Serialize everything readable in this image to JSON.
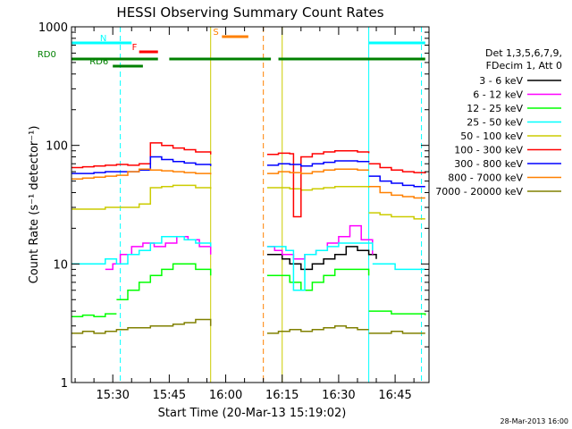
{
  "chart_data": {
    "type": "line",
    "title": "HESSI Observing Summary Count Rates",
    "xlabel": "Start Time (20-Mar-13 15:19:02)",
    "ylabel": "Count Rate (s⁻¹ detector⁻¹)",
    "y_scale": "log",
    "ylim": [
      1,
      1000
    ],
    "xlim": [
      "15:19:02",
      "16:54:00"
    ],
    "x_ticks": [
      "15:30",
      "15:45",
      "16:00",
      "16:15",
      "16:30",
      "16:45"
    ],
    "y_ticks": [
      "1",
      "10",
      "100",
      "1000"
    ],
    "footer_date": "28-Mar-2013 16:00",
    "legend_header": [
      "Det 1,3,5,6,7,9,",
      "FDecim 1, Att 0"
    ],
    "series": [
      {
        "name": "3 - 6 keV",
        "color": "#000000",
        "segments": [
          {
            "x": [
              "16:11",
              "16:13",
              "16:15",
              "16:17",
              "16:20",
              "16:23",
              "16:26",
              "16:29",
              "16:32",
              "16:35",
              "16:38",
              "16:40"
            ],
            "y": [
              12,
              12,
              11,
              10,
              9,
              10,
              11,
              12,
              14,
              13,
              12,
              11
            ]
          }
        ]
      },
      {
        "name": "6 - 12 keV",
        "color": "#ff00ff",
        "segments": [
          {
            "x": [
              "15:28",
              "15:30",
              "15:32",
              "15:35",
              "15:38",
              "15:41",
              "15:44",
              "15:47",
              "15:50",
              "15:53",
              "15:56"
            ],
            "y": [
              9,
              10,
              12,
              14,
              15,
              14,
              15,
              17,
              16,
              14,
              12
            ]
          },
          {
            "x": [
              "16:11",
              "16:13",
              "16:15",
              "16:18",
              "16:21",
              "16:24",
              "16:27",
              "16:30",
              "16:33",
              "16:36",
              "16:39"
            ],
            "y": [
              14,
              13,
              12,
              11,
              12,
              13,
              15,
              17,
              21,
              16,
              12
            ]
          }
        ]
      },
      {
        "name": "12 - 25 keV",
        "color": "#00ff00",
        "segments": [
          {
            "x": [
              "15:19",
              "15:22",
              "15:25",
              "15:28",
              "15:31"
            ],
            "y": [
              3.6,
              3.7,
              3.6,
              3.8,
              3.8
            ]
          },
          {
            "x": [
              "15:31",
              "15:34",
              "15:37",
              "15:40",
              "15:43",
              "15:46",
              "15:49",
              "15:52",
              "15:56"
            ],
            "y": [
              5,
              6,
              7,
              8,
              9,
              10,
              10,
              9,
              8
            ]
          },
          {
            "x": [
              "16:11",
              "16:14",
              "16:17",
              "16:20",
              "16:23",
              "16:26",
              "16:29",
              "16:32",
              "16:35",
              "16:38"
            ],
            "y": [
              8,
              8,
              7,
              6,
              7,
              8,
              9,
              9,
              9,
              8
            ]
          },
          {
            "x": [
              "16:38",
              "16:41",
              "16:44",
              "16:47",
              "16:50",
              "16:53"
            ],
            "y": [
              4,
              4,
              3.8,
              3.8,
              3.8,
              3.7
            ]
          }
        ]
      },
      {
        "name": "25 - 50 keV",
        "color": "#00ffff",
        "segments": [
          {
            "x": [
              "15:19",
              "15:22",
              "15:25",
              "15:28",
              "15:31",
              "15:34",
              "15:37",
              "15:40",
              "15:43",
              "15:46",
              "15:49",
              "15:52",
              "15:56"
            ],
            "y": [
              10,
              10,
              10,
              11,
              10,
              12,
              13,
              15,
              17,
              17,
              16,
              15,
              14
            ]
          },
          {
            "x": [
              "16:11",
              "16:14",
              "16:16",
              "16:18",
              "16:21",
              "16:24",
              "16:27",
              "16:30",
              "16:33",
              "16:36",
              "16:39"
            ],
            "y": [
              14,
              14,
              13,
              6,
              12,
              13,
              14,
              15,
              15,
              15,
              13
            ]
          },
          {
            "x": [
              "16:39",
              "16:42",
              "16:45",
              "16:48",
              "16:51",
              "16:53"
            ],
            "y": [
              10,
              10,
              9,
              9,
              9,
              9
            ]
          }
        ]
      },
      {
        "name": "50 - 100 keV",
        "color": "#cccc00",
        "segments": [
          {
            "x": [
              "15:19",
              "15:22",
              "15:25",
              "15:28",
              "15:31",
              "15:34",
              "15:37",
              "15:40",
              "15:43",
              "15:46",
              "15:49",
              "15:52",
              "15:56"
            ],
            "y": [
              29,
              29,
              29,
              30,
              30,
              30,
              32,
              44,
              45,
              46,
              46,
              44,
              43
            ]
          },
          {
            "x": [
              "16:11",
              "16:14",
              "16:17",
              "16:20",
              "16:23",
              "16:26",
              "16:29",
              "16:32",
              "16:35",
              "16:38"
            ],
            "y": [
              44,
              44,
              43,
              42,
              43,
              44,
              45,
              45,
              45,
              44
            ]
          },
          {
            "x": [
              "16:38",
              "16:41",
              "16:44",
              "16:47",
              "16:50",
              "16:53"
            ],
            "y": [
              27,
              26,
              25,
              25,
              24,
              24
            ]
          }
        ]
      },
      {
        "name": "100 - 300 keV",
        "color": "#ff0000",
        "segments": [
          {
            "x": [
              "15:19",
              "15:22",
              "15:25",
              "15:28",
              "15:31",
              "15:34",
              "15:37",
              "15:40",
              "15:43",
              "15:46",
              "15:49",
              "15:52",
              "15:56"
            ],
            "y": [
              65,
              66,
              67,
              68,
              69,
              68,
              70,
              105,
              100,
              95,
              92,
              88,
              84
            ]
          },
          {
            "x": [
              "16:11",
              "16:14",
              "16:17",
              "16:18",
              "16:20",
              "16:23",
              "16:26",
              "16:29",
              "16:32",
              "16:35",
              "16:38"
            ],
            "y": [
              84,
              86,
              85,
              25,
              80,
              85,
              88,
              90,
              90,
              88,
              86
            ]
          },
          {
            "x": [
              "16:38",
              "16:41",
              "16:44",
              "16:47",
              "16:50",
              "16:53"
            ],
            "y": [
              70,
              65,
              62,
              60,
              59,
              58
            ]
          }
        ]
      },
      {
        "name": "300 - 800 keV",
        "color": "#0000ff",
        "segments": [
          {
            "x": [
              "15:19",
              "15:22",
              "15:25",
              "15:28",
              "15:31",
              "15:34",
              "15:37",
              "15:40",
              "15:43",
              "15:46",
              "15:49",
              "15:52",
              "15:56"
            ],
            "y": [
              58,
              58,
              59,
              60,
              60,
              60,
              62,
              80,
              76,
              73,
              71,
              69,
              67
            ]
          },
          {
            "x": [
              "16:11",
              "16:14",
              "16:17",
              "16:20",
              "16:23",
              "16:26",
              "16:29",
              "16:32",
              "16:35",
              "16:38"
            ],
            "y": [
              68,
              70,
              69,
              67,
              70,
              72,
              74,
              74,
              73,
              72
            ]
          },
          {
            "x": [
              "16:38",
              "16:41",
              "16:44",
              "16:47",
              "16:50",
              "16:53"
            ],
            "y": [
              55,
              50,
              48,
              46,
              45,
              45
            ]
          }
        ]
      },
      {
        "name": "800 - 7000 keV",
        "color": "#ff8000",
        "segments": [
          {
            "x": [
              "15:19",
              "15:22",
              "15:25",
              "15:28",
              "15:31",
              "15:34",
              "15:37",
              "15:40",
              "15:43",
              "15:46",
              "15:49",
              "15:52",
              "15:56"
            ],
            "y": [
              52,
              53,
              54,
              55,
              56,
              60,
              63,
              62,
              61,
              60,
              59,
              58,
              57
            ]
          },
          {
            "x": [
              "16:11",
              "16:14",
              "16:17",
              "16:20",
              "16:23",
              "16:26",
              "16:29",
              "16:32",
              "16:35",
              "16:38"
            ],
            "y": [
              58,
              60,
              59,
              58,
              60,
              62,
              63,
              63,
              62,
              62
            ]
          },
          {
            "x": [
              "16:38",
              "16:41",
              "16:44",
              "16:47",
              "16:50",
              "16:53"
            ],
            "y": [
              45,
              40,
              38,
              37,
              36,
              36
            ]
          }
        ]
      },
      {
        "name": "7000 - 20000 keV",
        "color": "#808000",
        "segments": [
          {
            "x": [
              "15:19",
              "15:22",
              "15:25",
              "15:28",
              "15:31",
              "15:34",
              "15:37",
              "15:40",
              "15:43",
              "15:46",
              "15:49",
              "15:52",
              "15:56"
            ],
            "y": [
              2.6,
              2.7,
              2.6,
              2.7,
              2.8,
              2.9,
              2.9,
              3.0,
              3.0,
              3.1,
              3.2,
              3.4,
              3.0
            ]
          },
          {
            "x": [
              "16:11",
              "16:14",
              "16:17",
              "16:20",
              "16:23",
              "16:26",
              "16:29",
              "16:32",
              "16:35",
              "16:38"
            ],
            "y": [
              2.6,
              2.7,
              2.8,
              2.7,
              2.8,
              2.9,
              3.0,
              2.9,
              2.8,
              2.8
            ]
          },
          {
            "x": [
              "16:38",
              "16:41",
              "16:44",
              "16:47",
              "16:50",
              "16:53"
            ],
            "y": [
              2.6,
              2.6,
              2.7,
              2.6,
              2.6,
              2.6
            ]
          }
        ]
      }
    ],
    "flag_bars": [
      {
        "label": "N",
        "color": "#00ffff",
        "segments": [
          [
            "15:19",
            "15:35"
          ],
          [
            "16:38",
            "16:53"
          ]
        ]
      },
      {
        "label": "F",
        "color": "#ff0000",
        "segments": [
          [
            "15:37",
            "15:42"
          ]
        ]
      },
      {
        "label": "S",
        "color": "#ff8000",
        "segments": [
          [
            "15:59",
            "16:06"
          ]
        ]
      },
      {
        "label": "RD0",
        "color": "#008000",
        "segments": [
          [
            "15:19",
            "15:42"
          ],
          [
            "15:45",
            "16:12"
          ],
          [
            "16:14",
            "16:53"
          ]
        ]
      },
      {
        "label": "RD6",
        "color": "#008000",
        "segments": [
          [
            "15:30",
            "15:38"
          ]
        ]
      }
    ],
    "vertical_lines": [
      {
        "x": "15:32",
        "color": "#00ffff",
        "style": "dashed"
      },
      {
        "x": "15:56",
        "color": "#cccc00",
        "style": "solid"
      },
      {
        "x": "16:10",
        "color": "#ff8000",
        "style": "dashed"
      },
      {
        "x": "16:15",
        "color": "#cccc00",
        "style": "solid"
      },
      {
        "x": "16:38",
        "color": "#00ffff",
        "style": "solid"
      },
      {
        "x": "16:52",
        "color": "#00ffff",
        "style": "dashed"
      }
    ]
  }
}
